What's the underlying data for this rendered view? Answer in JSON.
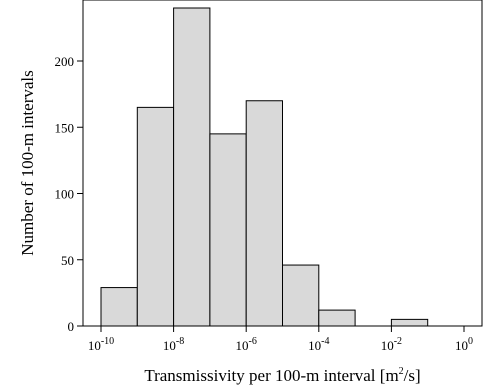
{
  "chart_data": {
    "type": "bar",
    "title": "",
    "xlabel": "Transmissivity per 100-m interval [m",
    "xlabel_sup": "2",
    "xlabel_tail": "/s]",
    "ylabel": "Number of 100-m intervals",
    "x_scale": "log10",
    "xlim": [
      1e-10,
      1
    ],
    "ylim": [
      0,
      240
    ],
    "grid": false,
    "legend": "none",
    "bar_color": "#d9d9d9",
    "bins": [
      {
        "from": 1e-10,
        "to": 1e-09,
        "value": 29
      },
      {
        "from": 1e-09,
        "to": 1e-08,
        "value": 165
      },
      {
        "from": 1e-08,
        "to": 1e-07,
        "value": 240
      },
      {
        "from": 1e-07,
        "to": 1e-06,
        "value": 145
      },
      {
        "from": 1e-06,
        "to": 1e-05,
        "value": 170
      },
      {
        "from": 1e-05,
        "to": 0.0001,
        "value": 46
      },
      {
        "from": 0.0001,
        "to": 0.001,
        "value": 12
      },
      {
        "from": 0.001,
        "to": 0.01,
        "value": 0
      },
      {
        "from": 0.01,
        "to": 0.1,
        "value": 5
      },
      {
        "from": 0.1,
        "to": 1,
        "value": 0
      }
    ],
    "x_ticks": [
      {
        "value": 1e-10,
        "base": "10",
        "exp": "-10"
      },
      {
        "value": 1e-08,
        "base": "10",
        "exp": "-8"
      },
      {
        "value": 1e-06,
        "base": "10",
        "exp": "-6"
      },
      {
        "value": 0.0001,
        "base": "10",
        "exp": "-4"
      },
      {
        "value": 0.01,
        "base": "10",
        "exp": "-2"
      },
      {
        "value": 1,
        "base": "10",
        "exp": "0"
      }
    ],
    "y_ticks": [
      {
        "value": 0,
        "label": "0"
      },
      {
        "value": 50,
        "label": "50"
      },
      {
        "value": 100,
        "label": "100"
      },
      {
        "value": 150,
        "label": "150"
      },
      {
        "value": 200,
        "label": "200"
      }
    ]
  }
}
